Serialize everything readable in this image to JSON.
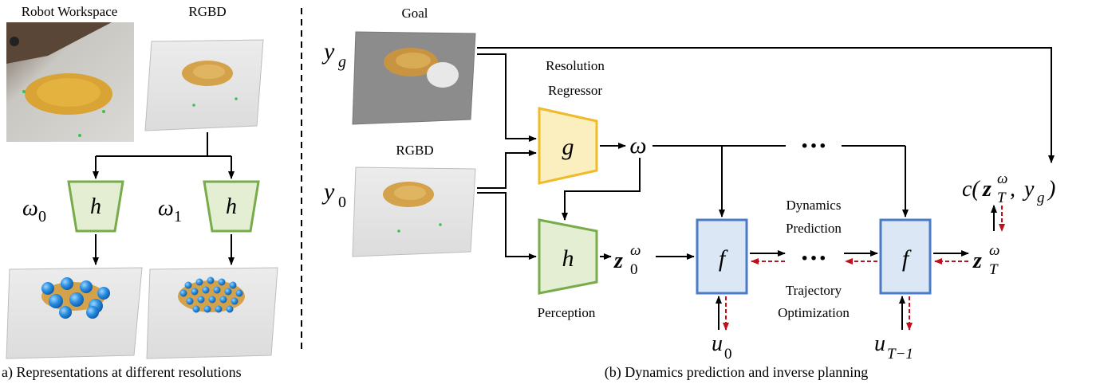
{
  "left_panel": {
    "workspace_title": "Robot Workspace",
    "rgbd_title": "RGBD",
    "omega0_sym": "ω",
    "omega0_sub": "0",
    "omega1_sym": "ω",
    "omega1_sub": "1",
    "h_left": "h",
    "h_right": "h",
    "caption": "a) Representations at different resolutions"
  },
  "right_panel": {
    "goal_title": "Goal",
    "rgbd_title": "RGBD",
    "yg_sym": "y",
    "yg_sub": "g",
    "y0_sym": "y",
    "y0_sub": "0",
    "regressor_line1": "Resolution",
    "regressor_line2": "Regressor",
    "g_label": "g",
    "omega_label": "ω",
    "h_label": "h",
    "perception_label": "Perception",
    "z0_sym": "z",
    "z0_sup": "ω",
    "z0_sub": "0",
    "f1_label": "f",
    "f2_label": "f",
    "dots_top": "···",
    "dots_mid": "···",
    "dynamics_line1": "Dynamics",
    "dynamics_line2": "Prediction",
    "trajectory_line1": "Trajectory",
    "trajectory_line2": "Optimization",
    "u0_sym": "u",
    "u0_sub": "0",
    "uT_sym": "u",
    "uT_sub": "T−1",
    "zT_sym": "z",
    "zT_sup": "ω",
    "zT_sub": "T",
    "cost_prefix": "c(",
    "cost_z": "z",
    "cost_sup": "ω",
    "cost_sub": "T",
    "cost_comma": ", ",
    "cost_y": "y",
    "cost_ysub": "g",
    "cost_close": ")",
    "caption": "(b) Dynamics prediction and inverse planning"
  },
  "colors": {
    "regressor_fill": "#fcefbf",
    "regressor_stroke": "#f0bb2a",
    "perception_fill": "#e3eed3",
    "perception_stroke": "#78ab4a",
    "dynamics_fill": "#dbe7f5",
    "dynamics_stroke": "#4a7bc4",
    "feedback_arrow": "#c0101b"
  }
}
